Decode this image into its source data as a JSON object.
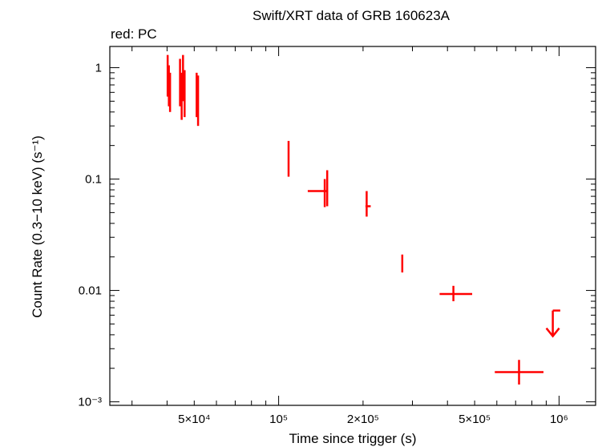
{
  "chart_data": {
    "type": "scatter",
    "title": "Swift/XRT data of GRB 160623A",
    "subtitle": "red: PC",
    "xlabel": "Time since trigger (s)",
    "ylabel": "Count Rate (0.3−10 keV) (s⁻¹)",
    "xscale": "log",
    "yscale": "log",
    "xlim": [
      25000,
      1350000
    ],
    "ylim": [
      0.00093,
      1.55
    ],
    "grid": false,
    "legend": "none",
    "x_ticks": [
      {
        "value": 50000,
        "label": "5×10⁴"
      },
      {
        "value": 100000,
        "label": "10⁵"
      },
      {
        "value": 200000,
        "label": "2×10⁵"
      },
      {
        "value": 500000,
        "label": "5×10⁵"
      },
      {
        "value": 1000000,
        "label": "10⁶"
      }
    ],
    "y_ticks": [
      {
        "value": 1,
        "label": "1"
      },
      {
        "value": 0.1,
        "label": "0.1"
      },
      {
        "value": 0.01,
        "label": "0.01"
      },
      {
        "value": 0.001,
        "label": "10⁻³"
      }
    ],
    "series": [
      {
        "color": "#ff0000",
        "points": [
          {
            "x": 40200,
            "y": 0.85,
            "xerr": [
              40100,
              40300
            ],
            "yerr": [
              0.55,
              1.3
            ]
          },
          {
            "x": 40600,
            "y": 0.7,
            "xerr": [
              40500,
              40700
            ],
            "yerr": [
              0.45,
              1.05
            ]
          },
          {
            "x": 41000,
            "y": 0.6,
            "xerr": [
              40900,
              41100
            ],
            "yerr": [
              0.4,
              0.9
            ]
          },
          {
            "x": 44500,
            "y": 0.75,
            "xerr": [
              44400,
              44600
            ],
            "yerr": [
              0.45,
              1.2
            ]
          },
          {
            "x": 45100,
            "y": 0.55,
            "xerr": [
              45000,
              45200
            ],
            "yerr": [
              0.34,
              0.9
            ]
          },
          {
            "x": 45600,
            "y": 0.8,
            "xerr": [
              45500,
              45700
            ],
            "yerr": [
              0.5,
              1.3
            ]
          },
          {
            "x": 46200,
            "y": 0.6,
            "xerr": [
              46100,
              46300
            ],
            "yerr": [
              0.36,
              0.95
            ]
          },
          {
            "x": 51000,
            "y": 0.6,
            "xerr": [
              50900,
              51100
            ],
            "yerr": [
              0.36,
              0.9
            ]
          },
          {
            "x": 51600,
            "y": 0.5,
            "xerr": [
              51500,
              51700
            ],
            "yerr": [
              0.3,
              0.85
            ]
          },
          {
            "x": 108500,
            "y": 0.15,
            "xerr": [
              108000,
              109000
            ],
            "yerr": [
              0.105,
              0.22
            ]
          },
          {
            "x": 146000,
            "y": 0.078,
            "xerr": [
              127000,
              149000
            ],
            "yerr": [
              0.056,
              0.1
            ]
          },
          {
            "x": 149000,
            "y": 0.078,
            "xerr": [
              148000,
              150000
            ],
            "yerr": [
              0.057,
              0.12
            ]
          },
          {
            "x": 206000,
            "y": 0.057,
            "xerr": [
              204000,
              213000
            ],
            "yerr": [
              0.046,
              0.078
            ]
          },
          {
            "x": 276000,
            "y": 0.017,
            "xerr": [
              275000,
              278000
            ],
            "yerr": [
              0.0145,
              0.021
            ]
          },
          {
            "x": 420000,
            "y": 0.0093,
            "xerr": [
              375000,
              490000
            ],
            "yerr": [
              0.008,
              0.011
            ]
          },
          {
            "x": 720000,
            "y": 0.00185,
            "xerr": [
              590000,
              880000
            ],
            "yerr": [
              0.00143,
              0.00238
            ]
          },
          {
            "x": 950000,
            "y": 0.0066,
            "xerr": [
              950000,
              1010000
            ],
            "upper_limit": true
          }
        ]
      }
    ]
  }
}
